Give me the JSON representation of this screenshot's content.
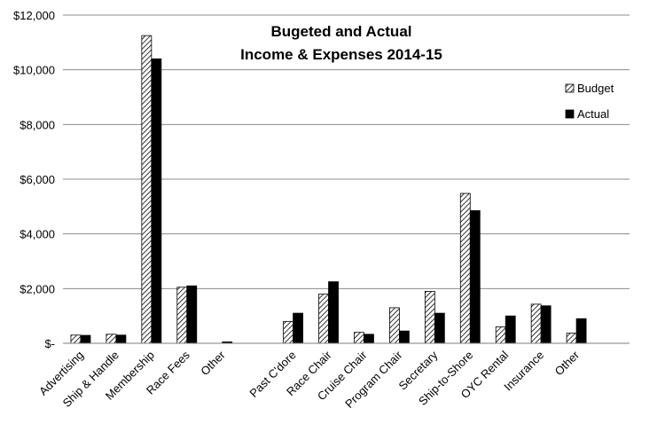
{
  "chart_data": {
    "type": "bar",
    "title_lines": [
      "Bugeted and Actual",
      "Income & Expenses 2014-15"
    ],
    "xlabel": "",
    "ylabel": "",
    "ylim": [
      0,
      12000
    ],
    "y_ticks": [
      {
        "value": 0,
        "label": "$-"
      },
      {
        "value": 2000,
        "label": "$2,000"
      },
      {
        "value": 4000,
        "label": "$4,000"
      },
      {
        "value": 6000,
        "label": "$6,000"
      },
      {
        "value": 8000,
        "label": "$8,000"
      },
      {
        "value": 10000,
        "label": "$10,000"
      },
      {
        "value": 12000,
        "label": "$12,000"
      }
    ],
    "categories": [
      "Advertising",
      "Ship & Handle",
      "Membership",
      "Race Fees",
      "Other",
      "",
      "Past C'dore",
      "Race Chair",
      "Cruise Chair",
      "Program Chair",
      "Secretary",
      "Ship-to-Shore",
      "OYC Rental",
      "Insurance",
      "Other",
      ""
    ],
    "series": [
      {
        "name": "Budget",
        "pattern": "hatch",
        "values": [
          300,
          330,
          11250,
          2050,
          0,
          null,
          800,
          1800,
          400,
          1300,
          1900,
          5480,
          600,
          1430,
          370,
          null
        ]
      },
      {
        "name": "Actual",
        "color": "#000000",
        "values": [
          290,
          300,
          10400,
          2100,
          50,
          null,
          1100,
          2250,
          330,
          450,
          1100,
          4850,
          1000,
          1370,
          900,
          null
        ]
      }
    ],
    "grid": true,
    "legend_position": "right"
  }
}
